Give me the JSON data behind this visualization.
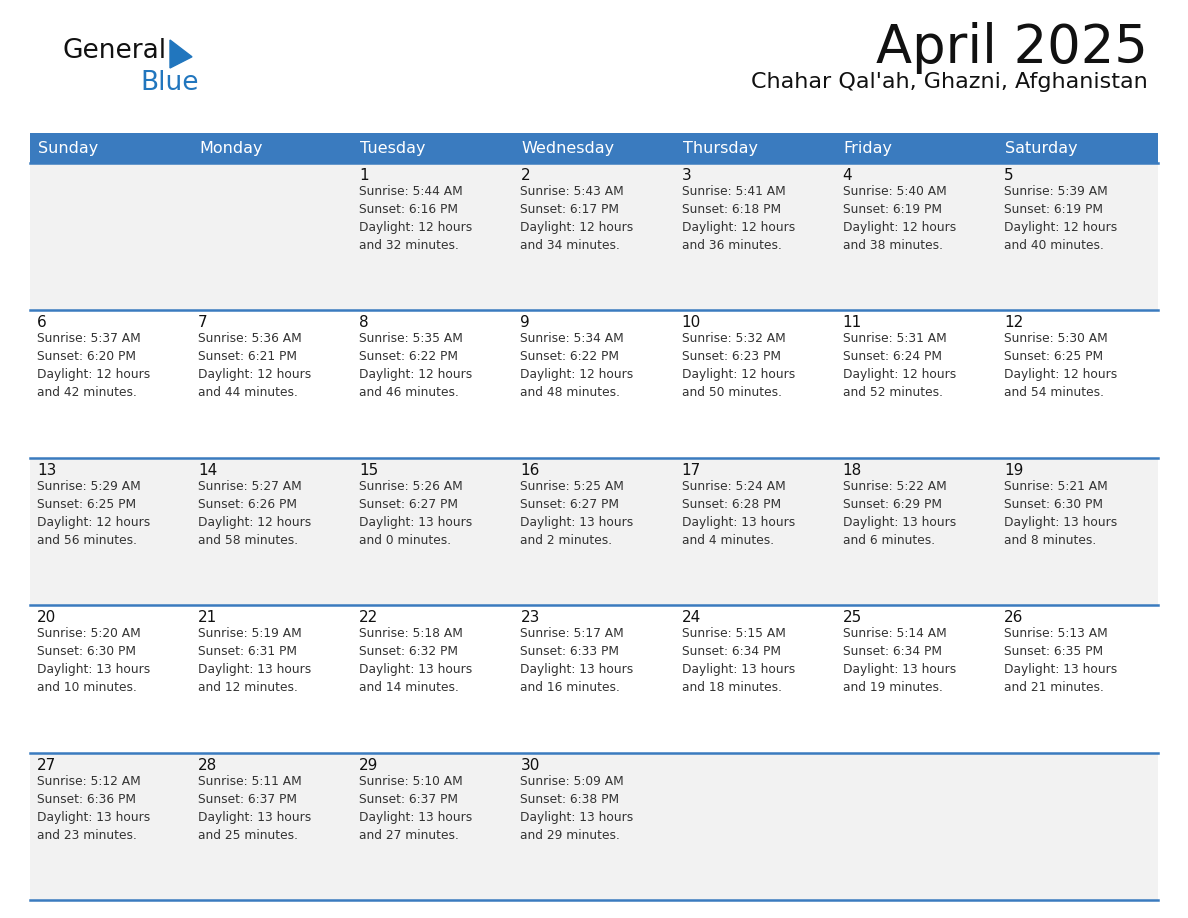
{
  "title": "April 2025",
  "subtitle": "Chahar Qal'ah, Ghazni, Afghanistan",
  "days_of_week": [
    "Sunday",
    "Monday",
    "Tuesday",
    "Wednesday",
    "Thursday",
    "Friday",
    "Saturday"
  ],
  "header_bg": "#3a7bbf",
  "header_text": "#ffffff",
  "row_bg_even": "#f2f2f2",
  "row_bg_odd": "#ffffff",
  "row_divider": "#3a7bbf",
  "text_color": "#333333",
  "day_num_color": "#111111",
  "title_color": "#111111",
  "subtitle_color": "#111111",
  "logo_general_color": "#111111",
  "logo_blue_color": "#2176be",
  "calendar": [
    [
      {
        "day": null,
        "info": null
      },
      {
        "day": null,
        "info": null
      },
      {
        "day": 1,
        "info": "Sunrise: 5:44 AM\nSunset: 6:16 PM\nDaylight: 12 hours\nand 32 minutes."
      },
      {
        "day": 2,
        "info": "Sunrise: 5:43 AM\nSunset: 6:17 PM\nDaylight: 12 hours\nand 34 minutes."
      },
      {
        "day": 3,
        "info": "Sunrise: 5:41 AM\nSunset: 6:18 PM\nDaylight: 12 hours\nand 36 minutes."
      },
      {
        "day": 4,
        "info": "Sunrise: 5:40 AM\nSunset: 6:19 PM\nDaylight: 12 hours\nand 38 minutes."
      },
      {
        "day": 5,
        "info": "Sunrise: 5:39 AM\nSunset: 6:19 PM\nDaylight: 12 hours\nand 40 minutes."
      }
    ],
    [
      {
        "day": 6,
        "info": "Sunrise: 5:37 AM\nSunset: 6:20 PM\nDaylight: 12 hours\nand 42 minutes."
      },
      {
        "day": 7,
        "info": "Sunrise: 5:36 AM\nSunset: 6:21 PM\nDaylight: 12 hours\nand 44 minutes."
      },
      {
        "day": 8,
        "info": "Sunrise: 5:35 AM\nSunset: 6:22 PM\nDaylight: 12 hours\nand 46 minutes."
      },
      {
        "day": 9,
        "info": "Sunrise: 5:34 AM\nSunset: 6:22 PM\nDaylight: 12 hours\nand 48 minutes."
      },
      {
        "day": 10,
        "info": "Sunrise: 5:32 AM\nSunset: 6:23 PM\nDaylight: 12 hours\nand 50 minutes."
      },
      {
        "day": 11,
        "info": "Sunrise: 5:31 AM\nSunset: 6:24 PM\nDaylight: 12 hours\nand 52 minutes."
      },
      {
        "day": 12,
        "info": "Sunrise: 5:30 AM\nSunset: 6:25 PM\nDaylight: 12 hours\nand 54 minutes."
      }
    ],
    [
      {
        "day": 13,
        "info": "Sunrise: 5:29 AM\nSunset: 6:25 PM\nDaylight: 12 hours\nand 56 minutes."
      },
      {
        "day": 14,
        "info": "Sunrise: 5:27 AM\nSunset: 6:26 PM\nDaylight: 12 hours\nand 58 minutes."
      },
      {
        "day": 15,
        "info": "Sunrise: 5:26 AM\nSunset: 6:27 PM\nDaylight: 13 hours\nand 0 minutes."
      },
      {
        "day": 16,
        "info": "Sunrise: 5:25 AM\nSunset: 6:27 PM\nDaylight: 13 hours\nand 2 minutes."
      },
      {
        "day": 17,
        "info": "Sunrise: 5:24 AM\nSunset: 6:28 PM\nDaylight: 13 hours\nand 4 minutes."
      },
      {
        "day": 18,
        "info": "Sunrise: 5:22 AM\nSunset: 6:29 PM\nDaylight: 13 hours\nand 6 minutes."
      },
      {
        "day": 19,
        "info": "Sunrise: 5:21 AM\nSunset: 6:30 PM\nDaylight: 13 hours\nand 8 minutes."
      }
    ],
    [
      {
        "day": 20,
        "info": "Sunrise: 5:20 AM\nSunset: 6:30 PM\nDaylight: 13 hours\nand 10 minutes."
      },
      {
        "day": 21,
        "info": "Sunrise: 5:19 AM\nSunset: 6:31 PM\nDaylight: 13 hours\nand 12 minutes."
      },
      {
        "day": 22,
        "info": "Sunrise: 5:18 AM\nSunset: 6:32 PM\nDaylight: 13 hours\nand 14 minutes."
      },
      {
        "day": 23,
        "info": "Sunrise: 5:17 AM\nSunset: 6:33 PM\nDaylight: 13 hours\nand 16 minutes."
      },
      {
        "day": 24,
        "info": "Sunrise: 5:15 AM\nSunset: 6:34 PM\nDaylight: 13 hours\nand 18 minutes."
      },
      {
        "day": 25,
        "info": "Sunrise: 5:14 AM\nSunset: 6:34 PM\nDaylight: 13 hours\nand 19 minutes."
      },
      {
        "day": 26,
        "info": "Sunrise: 5:13 AM\nSunset: 6:35 PM\nDaylight: 13 hours\nand 21 minutes."
      }
    ],
    [
      {
        "day": 27,
        "info": "Sunrise: 5:12 AM\nSunset: 6:36 PM\nDaylight: 13 hours\nand 23 minutes."
      },
      {
        "day": 28,
        "info": "Sunrise: 5:11 AM\nSunset: 6:37 PM\nDaylight: 13 hours\nand 25 minutes."
      },
      {
        "day": 29,
        "info": "Sunrise: 5:10 AM\nSunset: 6:37 PM\nDaylight: 13 hours\nand 27 minutes."
      },
      {
        "day": 30,
        "info": "Sunrise: 5:09 AM\nSunset: 6:38 PM\nDaylight: 13 hours\nand 29 minutes."
      },
      {
        "day": null,
        "info": null
      },
      {
        "day": null,
        "info": null
      },
      {
        "day": null,
        "info": null
      }
    ]
  ]
}
